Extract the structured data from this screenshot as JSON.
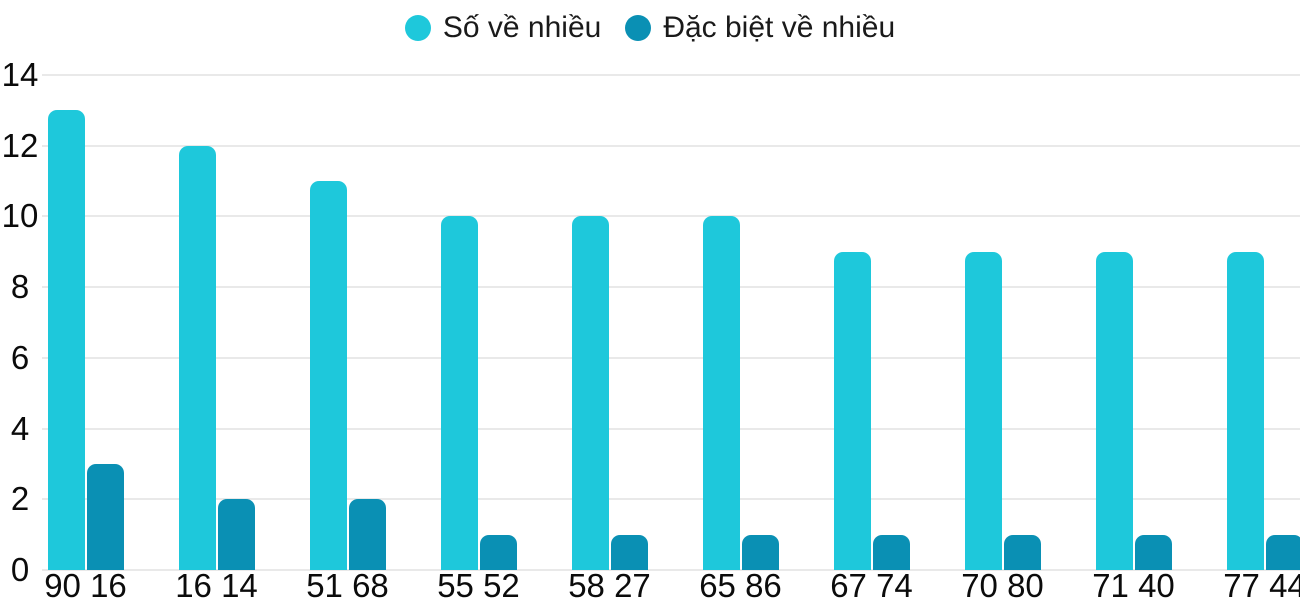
{
  "chart_data": {
    "type": "bar",
    "title": "",
    "xlabel": "",
    "ylabel": "",
    "categories": [
      "90 16",
      "16 14",
      "51 68",
      "55 52",
      "58 27",
      "65 86",
      "67 74",
      "70 80",
      "71 40",
      "77 44"
    ],
    "series": [
      {
        "name": "Số về nhiều",
        "color": "#1ec8db",
        "values": [
          13,
          12,
          11,
          10,
          10,
          10,
          9,
          9,
          9,
          9
        ]
      },
      {
        "name": "Đặc biệt về nhiều",
        "color": "#0a90b4",
        "values": [
          3,
          2,
          2,
          1,
          1,
          1,
          1,
          1,
          1,
          1
        ]
      }
    ],
    "ylim": [
      0,
      14
    ],
    "yticks": [
      0,
      2,
      4,
      6,
      8,
      10,
      12,
      14
    ],
    "grid": true,
    "legend_position": "top"
  },
  "colors": {
    "grid": "#e9e9e9",
    "tick_text": "#0b0b0b",
    "legend_text": "#1a1a1a",
    "background": "#ffffff"
  }
}
